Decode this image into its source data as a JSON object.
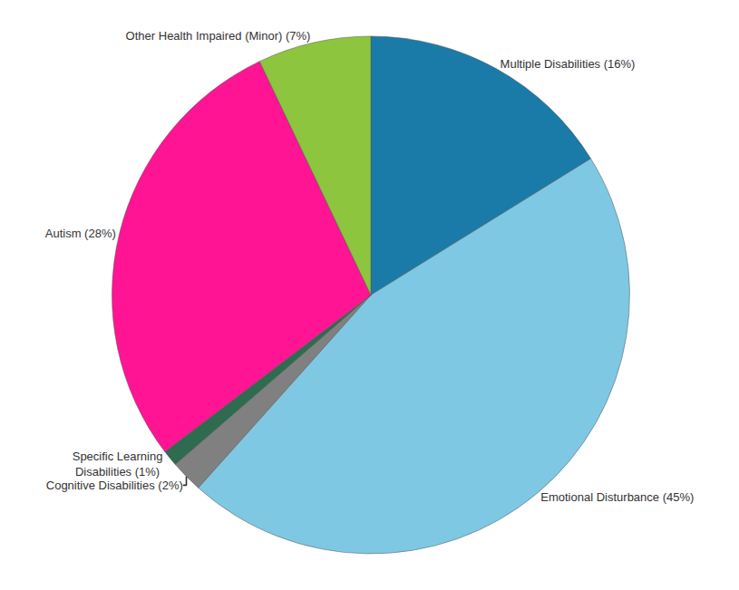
{
  "chart_data": {
    "type": "pie",
    "categories": [
      "Multiple Disabilities (16%)",
      "Emotional Disturbance (45%)",
      "Cognitive Disabilities (2%)",
      "Specific Learning\nDisabilities (1%)",
      "Autism (28%)",
      "Other Health Impaired (Minor) (7%)"
    ],
    "values": [
      16,
      45,
      2,
      1,
      28,
      7
    ],
    "colors": [
      "#1B7BA8",
      "#7EC8E3",
      "#808080",
      "#2E6B4F",
      "#FF1493",
      "#8DC53E"
    ]
  }
}
